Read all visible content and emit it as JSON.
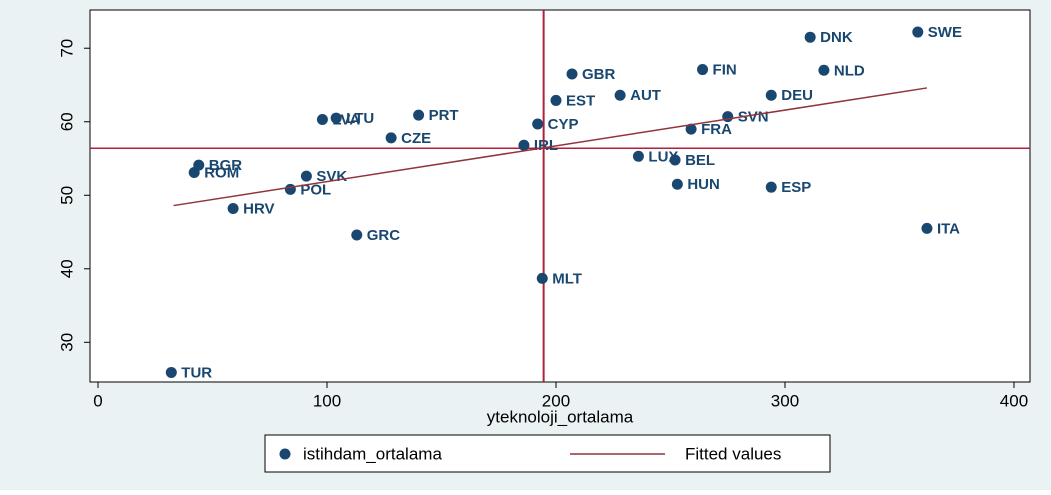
{
  "chart_data": {
    "type": "scatter",
    "x_label": "yteknoloji_ortalama",
    "xlim": [
      -3.5,
      407
    ],
    "ylim": [
      24.6,
      75.2
    ],
    "xticks": [
      0,
      100,
      200,
      300,
      400
    ],
    "yticks": [
      30,
      40,
      50,
      60,
      70
    ],
    "grid": false,
    "xline": 194.6,
    "yline": 56.4,
    "reference_color": "#b0203a",
    "series": [
      {
        "name": "istihdam_ortalama",
        "type": "scatter",
        "color": "#1a476f",
        "labels": [
          "SWE",
          "DNK",
          "NLD",
          "FIN",
          "GBR",
          "AUT",
          "DEU",
          "EST",
          "PRT",
          "LVA",
          "LTU",
          "SVN",
          "CYP",
          "FRA",
          "CZE",
          "IRL",
          "LUX",
          "BEL",
          "BGR",
          "ROM",
          "SVK",
          "POL",
          "HUN",
          "ESP",
          "HRV",
          "ITA",
          "GRC",
          "MLT",
          "TUR"
        ],
        "x": [
          358,
          311,
          317,
          264,
          207,
          228,
          294,
          200,
          140,
          98,
          104,
          275,
          192,
          259,
          128,
          186,
          236,
          252,
          44,
          42,
          91,
          84,
          253,
          294,
          59,
          362,
          113,
          194,
          32
        ],
        "values": [
          72.2,
          71.5,
          67.0,
          67.1,
          66.5,
          63.6,
          63.6,
          62.9,
          60.9,
          60.3,
          60.5,
          60.7,
          59.7,
          59.0,
          57.8,
          56.8,
          55.3,
          54.8,
          54.1,
          53.1,
          52.6,
          50.8,
          51.5,
          51.1,
          48.2,
          45.5,
          44.6,
          38.7,
          25.9
        ]
      },
      {
        "name": "Fitted values",
        "type": "line",
        "color": "#90353b",
        "x": [
          33,
          362
        ],
        "values": [
          48.6,
          64.6
        ]
      }
    ]
  }
}
